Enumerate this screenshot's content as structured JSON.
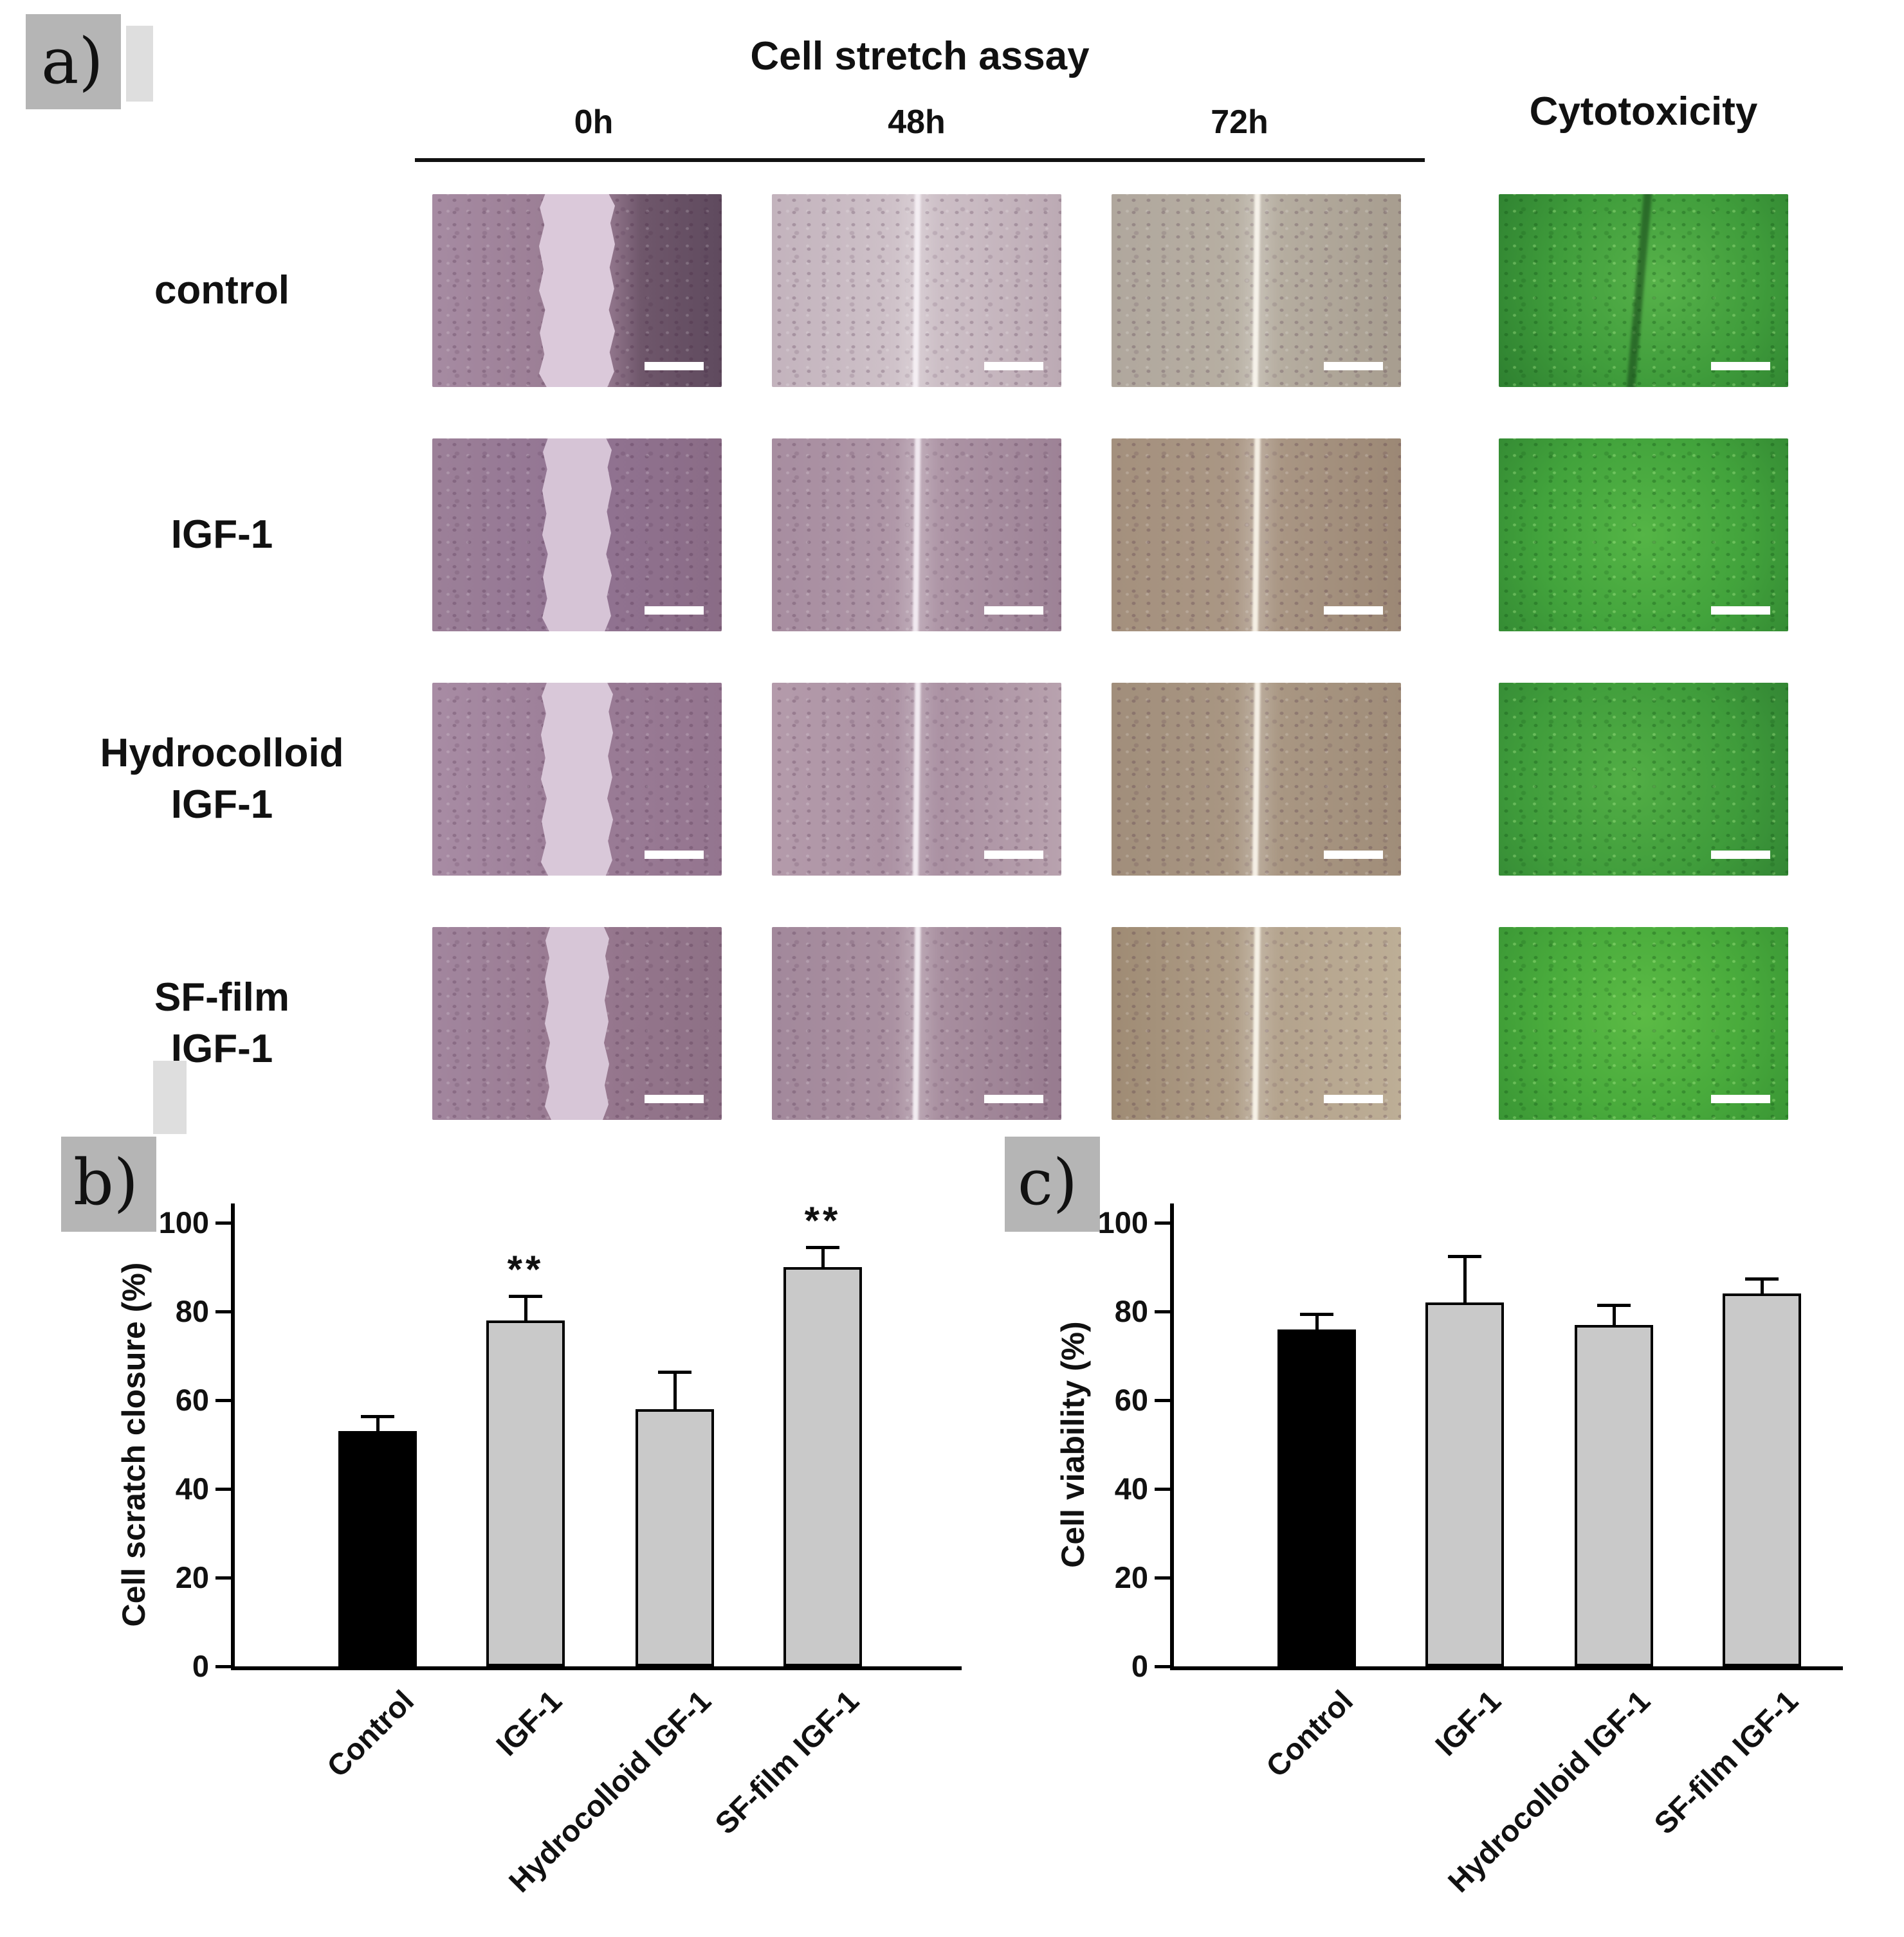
{
  "figure": {
    "panel_a": {
      "label": "a)",
      "title": "Cell stretch assay",
      "timepoints": [
        "0h",
        "48h",
        "72h"
      ],
      "cytotoxicity_header": "Cytotoxicity",
      "scale_bar_color": "#ffffff",
      "rows": [
        {
          "label_lines": [
            "control"
          ],
          "cells": [
            {
              "name": "control-0h-micrograph",
              "kind": "scratch-gap",
              "base": "linear-gradient(90deg,#a68ba2 0%,#9c7f96 38%,#9c7f96 58%,#6f576b 72%,#5f4a5e 100%)",
              "gap_color": "#dbc9da",
              "gap_width": 118
            },
            {
              "name": "control-48h-micrograph",
              "kind": "scratch-line",
              "base": "linear-gradient(90deg,#c3b3bd 0%,#cfc2c9 45%,#c9bac2 70%,#bcaab4 100%)",
              "line_color": "#f4eef3"
            },
            {
              "name": "control-72h-micrograph",
              "kind": "scratch-line",
              "base": "linear-gradient(90deg,#b0a79d 0%,#b8b0a3 50%,#a79d8f 100%)",
              "line_color": "#f6f2ea"
            },
            {
              "name": "control-cytotoxicity-micrograph",
              "kind": "cytotoxicity",
              "base": "radial-gradient(circle at 55% 45%,#57b24a 0%,#3f9c3b 55%,#2e8030 100%)",
              "crack": true
            }
          ]
        },
        {
          "label_lines": [
            "IGF-1"
          ],
          "cells": [
            {
              "name": "igf1-0h-micrograph",
              "kind": "scratch-gap",
              "base": "linear-gradient(90deg,#9c8098 0%,#927493 50%,#8a6c86 100%)",
              "gap_color": "#d6c4d6",
              "gap_width": 108
            },
            {
              "name": "igf1-48h-micrograph",
              "kind": "scratch-line",
              "base": "linear-gradient(90deg,#a78da0 0%,#b098a8 50%,#9d8296 100%)",
              "line_color": "#f1e9f0"
            },
            {
              "name": "igf1-72h-micrograph",
              "kind": "scratch-line",
              "base": "linear-gradient(90deg,#a4907d 0%,#ab9886 50%,#9c8875 100%)",
              "line_color": "#f5efe4"
            },
            {
              "name": "igf1-cytotoxicity-micrograph",
              "kind": "cytotoxicity",
              "base": "radial-gradient(circle at 50% 50%,#55b546 0%,#42a33c 60%,#358c34 100%)",
              "crack": false
            }
          ]
        },
        {
          "label_lines": [
            "Hydrocolloid",
            "IGF-1"
          ],
          "cells": [
            {
              "name": "hydrocolloid-igf1-0h-micrograph",
              "kind": "scratch-gap",
              "base": "linear-gradient(90deg,#a88ca4 0%,#9b7d97 50%,#94758f 100%)",
              "gap_color": "#d9c8d9",
              "gap_width": 112
            },
            {
              "name": "hydrocolloid-igf1-48h-micrograph",
              "kind": "scratch-line",
              "base": "linear-gradient(90deg,#b49bab 0%,#a98fa1 55%,#b8a2ae 100%)",
              "line_color": "#f2ebf1"
            },
            {
              "name": "hydrocolloid-igf1-72h-micrograph",
              "kind": "scratch-line",
              "base": "linear-gradient(90deg,#a18e7b 0%,#aa9884 50%,#a08d79 100%)",
              "line_color": "#f5efe5"
            },
            {
              "name": "hydrocolloid-igf1-cytotoxicity-micrograph",
              "kind": "cytotoxicity",
              "base": "radial-gradient(circle at 45% 50%,#52ae45 0%,#3f9c3b 60%,#338634 100%)",
              "crack": false
            }
          ]
        },
        {
          "label_lines": [
            "SF-film",
            "IGF-1"
          ],
          "cells": [
            {
              "name": "sf-film-igf1-0h-micrograph",
              "kind": "scratch-gap",
              "base": "linear-gradient(90deg,#a2869e 0%,#97788f 55%,#8d7085 100%)",
              "gap_color": "#d7c6d7",
              "gap_width": 100
            },
            {
              "name": "sf-film-igf1-48h-micrograph",
              "kind": "scratch-line",
              "base": "linear-gradient(90deg,#a2889b 0%,#ab92a2 50%,#977b8f 100%)",
              "line_color": "#f2ecf1"
            },
            {
              "name": "sf-film-igf1-72h-micrograph",
              "kind": "scratch-line",
              "base": "linear-gradient(90deg,#9f8b74 0%,#b3a28c 55%,#bdae96 100%)",
              "line_color": "#f6f1e6"
            },
            {
              "name": "sf-film-igf1-cytotoxicity-micrograph",
              "kind": "cytotoxicity",
              "base": "radial-gradient(circle at 50% 45%,#5cbb45 0%,#49ab3c 55%,#3a9635 100%)",
              "crack": false
            }
          ]
        }
      ]
    },
    "panel_b": {
      "label": "b)"
    },
    "panel_c": {
      "label": "c)"
    }
  },
  "chart_data": [
    {
      "id": "cell-scratch-closure",
      "type": "bar",
      "title": "",
      "xlabel": "",
      "ylabel": "Cell scratch closure (%)",
      "categories": [
        "Control",
        "IGF-1",
        "Hydrocolloid IGF-1",
        "SF-film IGF-1"
      ],
      "values": [
        53,
        78,
        58,
        90
      ],
      "errors": [
        3,
        5,
        8,
        4
      ],
      "significance": [
        "",
        "**",
        "",
        "**"
      ],
      "bar_colors": [
        "#000000",
        "#c9c9c9",
        "#c9c9c9",
        "#c9c9c9"
      ],
      "ylim": [
        0,
        100
      ],
      "yticks": [
        0,
        20,
        40,
        60,
        80,
        100
      ],
      "grid": false,
      "legend": false
    },
    {
      "id": "cell-viability",
      "type": "bar",
      "title": "",
      "xlabel": "",
      "ylabel": "Cell viability (%)",
      "categories": [
        "Control",
        "IGF-1",
        "Hydrocolloid IGF-1",
        "SF-film IGF-1"
      ],
      "values": [
        76,
        82,
        77,
        84
      ],
      "errors": [
        3,
        10,
        4,
        3
      ],
      "significance": [
        "",
        "",
        "",
        ""
      ],
      "bar_colors": [
        "#000000",
        "#c9c9c9",
        "#c9c9c9",
        "#c9c9c9"
      ],
      "ylim": [
        0,
        100
      ],
      "yticks": [
        0,
        20,
        40,
        60,
        80,
        100
      ],
      "grid": false,
      "legend": false
    }
  ]
}
